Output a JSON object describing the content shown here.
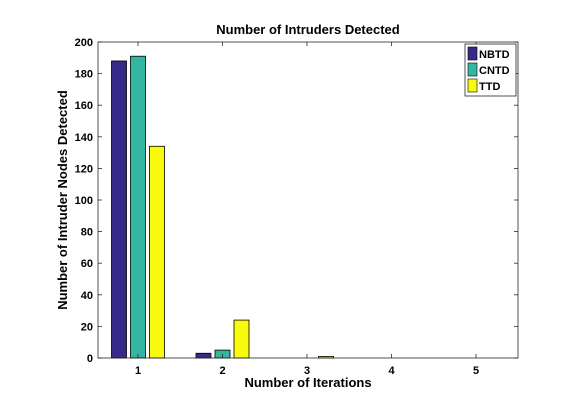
{
  "chart_data": {
    "type": "bar",
    "title": "Number of Intruders Detected",
    "xlabel": "Number of Iterations",
    "ylabel": "Number of Intruder Nodes Detected",
    "categories": [
      "1",
      "2",
      "3",
      "4",
      "5"
    ],
    "series": [
      {
        "name": "NBTD",
        "color": "#352a87",
        "values": [
          188,
          3,
          0,
          0,
          0
        ]
      },
      {
        "name": "CNTD",
        "color": "#33b7a0",
        "values": [
          191,
          5,
          0,
          0,
          0
        ]
      },
      {
        "name": "TTD",
        "color": "#f9fb0e",
        "values": [
          134,
          24,
          1,
          0,
          0
        ]
      }
    ],
    "ylim": [
      0,
      200
    ],
    "yticks": [
      "0",
      "20",
      "40",
      "60",
      "80",
      "100",
      "120",
      "140",
      "160",
      "180",
      "200"
    ],
    "grid": false,
    "legend_position": "top-right"
  }
}
